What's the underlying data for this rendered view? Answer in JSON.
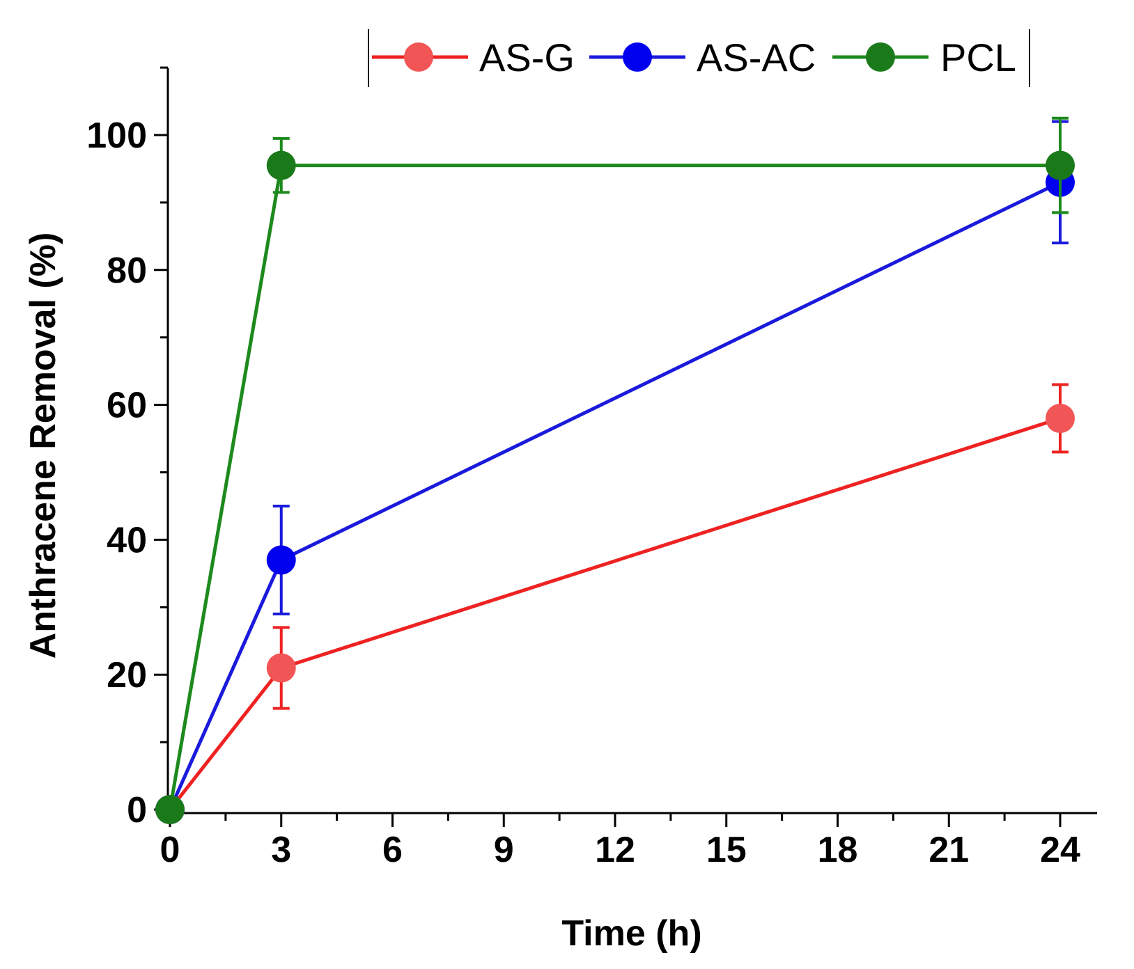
{
  "chart_data": {
    "type": "line",
    "title": "",
    "xlabel": "Time (h)",
    "ylabel": "Anthracene Removal (%)",
    "xlim": [
      0,
      25
    ],
    "ylim": [
      0,
      110
    ],
    "xticks": [
      0,
      3,
      6,
      9,
      12,
      15,
      18,
      21,
      24
    ],
    "xtick_labels": [
      "0",
      "3",
      "6",
      "9",
      "12",
      "15",
      "18",
      "21",
      "24"
    ],
    "yticks": [
      0,
      20,
      40,
      60,
      80,
      100
    ],
    "ytick_labels": [
      "0",
      "20",
      "40",
      "60",
      "80",
      "100"
    ],
    "grid": false,
    "legend_position": "top",
    "x": [
      0,
      3,
      24
    ],
    "series": [
      {
        "name": "AS-G",
        "color": "#ee2222",
        "marker_color": "#f25555",
        "values": [
          0,
          21,
          58
        ],
        "errors": [
          0,
          6,
          5
        ]
      },
      {
        "name": "AS-AC",
        "color": "#1a1adc",
        "marker_color": "#0000ee",
        "values": [
          0,
          37,
          93
        ],
        "errors": [
          0,
          8,
          9
        ]
      },
      {
        "name": "PCL",
        "color": "#1d8a1d",
        "marker_color": "#1a7a1a",
        "values": [
          0,
          95.5,
          95.5
        ],
        "errors": [
          0,
          4,
          7
        ]
      }
    ]
  }
}
